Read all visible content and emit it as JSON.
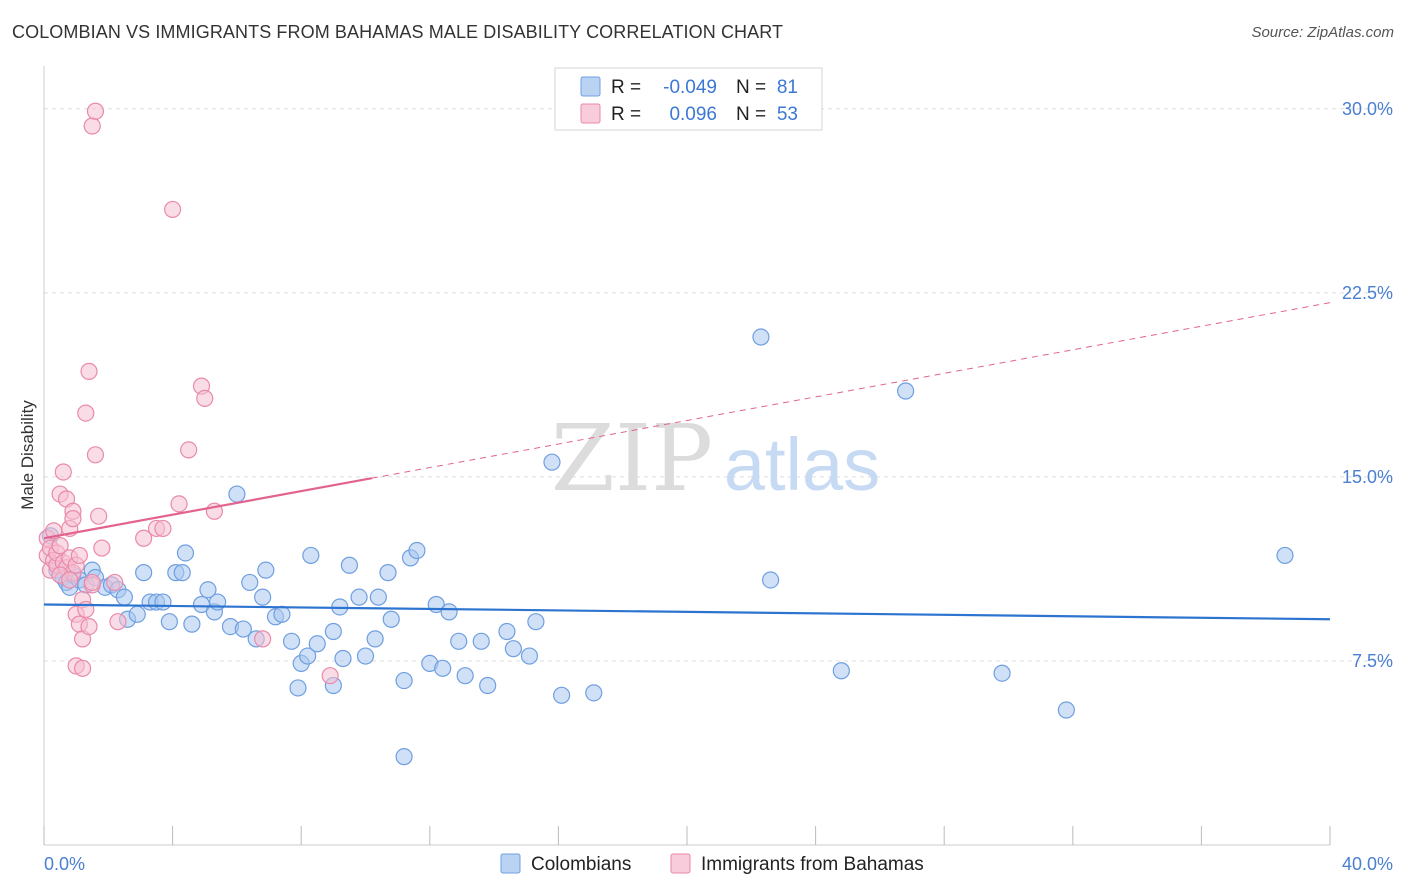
{
  "title": "COLOMBIAN VS IMMIGRANTS FROM BAHAMAS MALE DISABILITY CORRELATION CHART",
  "source": "Source: ZipAtlas.com",
  "watermark": {
    "zip": "ZIP",
    "atlas": "atlas"
  },
  "colors": {
    "blue": "#6f9fe0",
    "blue_fill": "#aac8f0",
    "blue_line": "#2d74d0",
    "pink": "#e98aaa",
    "pink_fill": "#f6bfd1",
    "pink_line": "#e2648e",
    "grid": "#dddddd",
    "tick_text": "#4a7fd1"
  },
  "legend": {
    "rows": [
      {
        "r_label": "R =",
        "r_value": "-0.049",
        "n_label": "N =",
        "n_value": "81",
        "series": "blue"
      },
      {
        "r_label": "R =",
        "r_value": "0.096",
        "n_label": "N =",
        "n_value": "53",
        "series": "pink"
      }
    ]
  },
  "bottom_legend": [
    "Colombians",
    "Immigrants from Bahamas"
  ],
  "chart_data": {
    "type": "scatter",
    "title": "COLOMBIAN VS IMMIGRANTS FROM BAHAMAS MALE DISABILITY CORRELATION CHART",
    "xlabel": "",
    "ylabel": "Male Disability",
    "xlim": [
      0,
      40
    ],
    "ylim": [
      0,
      31.5
    ],
    "x_tick_labels": [
      "0.0%",
      "40.0%"
    ],
    "y_ticks": [
      7.5,
      15.0,
      22.5,
      30.0
    ],
    "y_tick_labels": [
      "7.5%",
      "15.0%",
      "22.5%",
      "30.0%"
    ],
    "series": [
      {
        "name": "Colombians",
        "color": "blue",
        "trend": {
          "x": [
            0,
            40
          ],
          "y": [
            9.8,
            9.2
          ],
          "dashed_from": null
        },
        "points": [
          [
            0.2,
            12.6
          ],
          [
            0.4,
            11.2
          ],
          [
            0.6,
            10.9
          ],
          [
            0.7,
            10.7
          ],
          [
            0.8,
            10.5
          ],
          [
            0.9,
            11.0
          ],
          [
            1.1,
            10.8
          ],
          [
            1.3,
            10.6
          ],
          [
            1.5,
            11.2
          ],
          [
            1.6,
            10.9
          ],
          [
            1.9,
            10.5
          ],
          [
            2.1,
            10.6
          ],
          [
            2.3,
            10.4
          ],
          [
            2.5,
            10.1
          ],
          [
            2.6,
            9.2
          ],
          [
            2.9,
            9.4
          ],
          [
            3.1,
            11.1
          ],
          [
            3.3,
            9.9
          ],
          [
            3.5,
            9.9
          ],
          [
            3.7,
            9.9
          ],
          [
            3.9,
            9.1
          ],
          [
            4.1,
            11.1
          ],
          [
            4.3,
            11.1
          ],
          [
            4.4,
            11.9
          ],
          [
            4.6,
            9.0
          ],
          [
            4.9,
            9.8
          ],
          [
            5.1,
            10.4
          ],
          [
            5.3,
            9.5
          ],
          [
            5.4,
            9.9
          ],
          [
            5.8,
            8.9
          ],
          [
            6.0,
            14.3
          ],
          [
            6.2,
            8.8
          ],
          [
            6.4,
            10.7
          ],
          [
            6.6,
            8.4
          ],
          [
            6.8,
            10.1
          ],
          [
            6.9,
            11.2
          ],
          [
            7.2,
            9.3
          ],
          [
            7.4,
            9.4
          ],
          [
            7.7,
            8.3
          ],
          [
            7.9,
            6.4
          ],
          [
            8.0,
            7.4
          ],
          [
            8.2,
            7.7
          ],
          [
            8.3,
            11.8
          ],
          [
            8.5,
            8.2
          ],
          [
            9.0,
            8.7
          ],
          [
            9.0,
            6.5
          ],
          [
            9.2,
            9.7
          ],
          [
            9.3,
            7.6
          ],
          [
            9.5,
            11.4
          ],
          [
            9.8,
            10.1
          ],
          [
            10.0,
            7.7
          ],
          [
            10.3,
            8.4
          ],
          [
            10.4,
            10.1
          ],
          [
            10.7,
            11.1
          ],
          [
            10.8,
            9.2
          ],
          [
            11.2,
            6.7
          ],
          [
            11.4,
            11.7
          ],
          [
            11.6,
            12.0
          ],
          [
            12.0,
            7.4
          ],
          [
            12.2,
            9.8
          ],
          [
            12.4,
            7.2
          ],
          [
            12.6,
            9.5
          ],
          [
            12.9,
            8.3
          ],
          [
            13.1,
            6.9
          ],
          [
            13.6,
            8.3
          ],
          [
            13.8,
            6.5
          ],
          [
            14.4,
            8.7
          ],
          [
            14.6,
            8.0
          ],
          [
            15.1,
            7.7
          ],
          [
            15.3,
            9.1
          ],
          [
            15.8,
            15.6
          ],
          [
            16.1,
            6.1
          ],
          [
            17.1,
            6.2
          ],
          [
            22.3,
            20.7
          ],
          [
            22.6,
            10.8
          ],
          [
            24.8,
            7.1
          ],
          [
            26.8,
            18.5
          ],
          [
            29.8,
            7.0
          ],
          [
            31.8,
            5.5
          ],
          [
            38.6,
            11.8
          ],
          [
            11.2,
            3.6
          ]
        ]
      },
      {
        "name": "Immigrants from Bahamas",
        "color": "pink",
        "trend": {
          "x": [
            0,
            40
          ],
          "y": [
            12.5,
            22.1
          ],
          "dashed_from": 10.2
        },
        "points": [
          [
            0.1,
            11.8
          ],
          [
            0.1,
            12.5
          ],
          [
            0.2,
            11.2
          ],
          [
            0.2,
            12.1
          ],
          [
            0.3,
            11.6
          ],
          [
            0.3,
            12.8
          ],
          [
            0.4,
            11.4
          ],
          [
            0.4,
            11.9
          ],
          [
            0.5,
            12.2
          ],
          [
            0.5,
            14.3
          ],
          [
            0.6,
            11.5
          ],
          [
            0.6,
            15.2
          ],
          [
            0.7,
            11.3
          ],
          [
            0.7,
            14.1
          ],
          [
            0.8,
            11.7
          ],
          [
            0.8,
            12.9
          ],
          [
            0.9,
            11.1
          ],
          [
            0.9,
            13.6
          ],
          [
            0.9,
            13.3
          ],
          [
            1.0,
            11.4
          ],
          [
            1.0,
            9.4
          ],
          [
            1.0,
            7.3
          ],
          [
            1.1,
            9.0
          ],
          [
            1.1,
            11.8
          ],
          [
            1.2,
            7.2
          ],
          [
            1.2,
            10.0
          ],
          [
            1.2,
            8.4
          ],
          [
            1.3,
            9.6
          ],
          [
            1.3,
            17.6
          ],
          [
            1.4,
            8.9
          ],
          [
            1.4,
            19.3
          ],
          [
            1.5,
            10.6
          ],
          [
            1.5,
            29.3
          ],
          [
            1.5,
            10.7
          ],
          [
            1.6,
            15.9
          ],
          [
            1.6,
            29.9
          ],
          [
            1.7,
            13.4
          ],
          [
            1.8,
            12.1
          ],
          [
            2.2,
            10.7
          ],
          [
            2.3,
            9.1
          ],
          [
            3.1,
            12.5
          ],
          [
            3.5,
            12.9
          ],
          [
            3.7,
            12.9
          ],
          [
            4.0,
            25.9
          ],
          [
            4.2,
            13.9
          ],
          [
            4.5,
            16.1
          ],
          [
            4.9,
            18.7
          ],
          [
            5.0,
            18.2
          ],
          [
            5.3,
            13.6
          ],
          [
            6.8,
            8.4
          ],
          [
            8.9,
            6.9
          ],
          [
            0.5,
            11.0
          ],
          [
            0.8,
            10.8
          ]
        ]
      }
    ]
  }
}
